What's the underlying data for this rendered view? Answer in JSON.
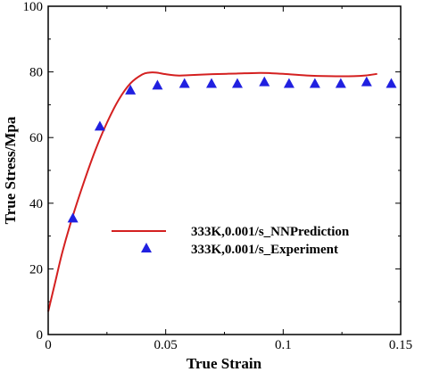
{
  "chart_data": {
    "type": "line",
    "xlabel": "True Strain",
    "ylabel": "True Stress/Mpa",
    "xlim": [
      0,
      0.15
    ],
    "ylim": [
      0,
      100
    ],
    "x_ticks": [
      0,
      0.05,
      0.1,
      0.15
    ],
    "x_tick_labels": [
      "0",
      "0.05",
      "0.1",
      "0.15"
    ],
    "y_ticks": [
      0,
      20,
      40,
      60,
      80,
      100
    ],
    "y_tick_labels": [
      "0",
      "20",
      "40",
      "60",
      "80",
      "100"
    ],
    "grid": false,
    "legend_position": "center-right",
    "series": [
      {
        "name": "333K,0.001/s_NNPrediction",
        "kind": "line",
        "color": "#d42020",
        "x": [
          0,
          0.003,
          0.006,
          0.01,
          0.015,
          0.02,
          0.025,
          0.03,
          0.035,
          0.04,
          0.043,
          0.046,
          0.05,
          0.055,
          0.06,
          0.07,
          0.08,
          0.09,
          0.095,
          0.1,
          0.11,
          0.12,
          0.13,
          0.135,
          0.14
        ],
        "y": [
          7,
          16,
          25,
          35,
          46,
          56,
          64.5,
          71.5,
          76.5,
          79.2,
          79.8,
          79.8,
          79.3,
          78.9,
          79.0,
          79.3,
          79.5,
          79.7,
          79.6,
          79.4,
          78.9,
          78.7,
          78.7,
          78.9,
          79.4
        ]
      },
      {
        "name": "333K,0.001/s_Experiment",
        "kind": "scatter",
        "marker": "triangle",
        "color": "#2020e0",
        "x": [
          0.0105,
          0.022,
          0.035,
          0.0465,
          0.058,
          0.0695,
          0.0805,
          0.092,
          0.1025,
          0.1135,
          0.1245,
          0.1355,
          0.146
        ],
        "y": [
          35.5,
          63.5,
          74.5,
          76,
          76.5,
          76.5,
          76.5,
          77,
          76.5,
          76.5,
          76.5,
          77,
          76.5
        ]
      }
    ]
  }
}
